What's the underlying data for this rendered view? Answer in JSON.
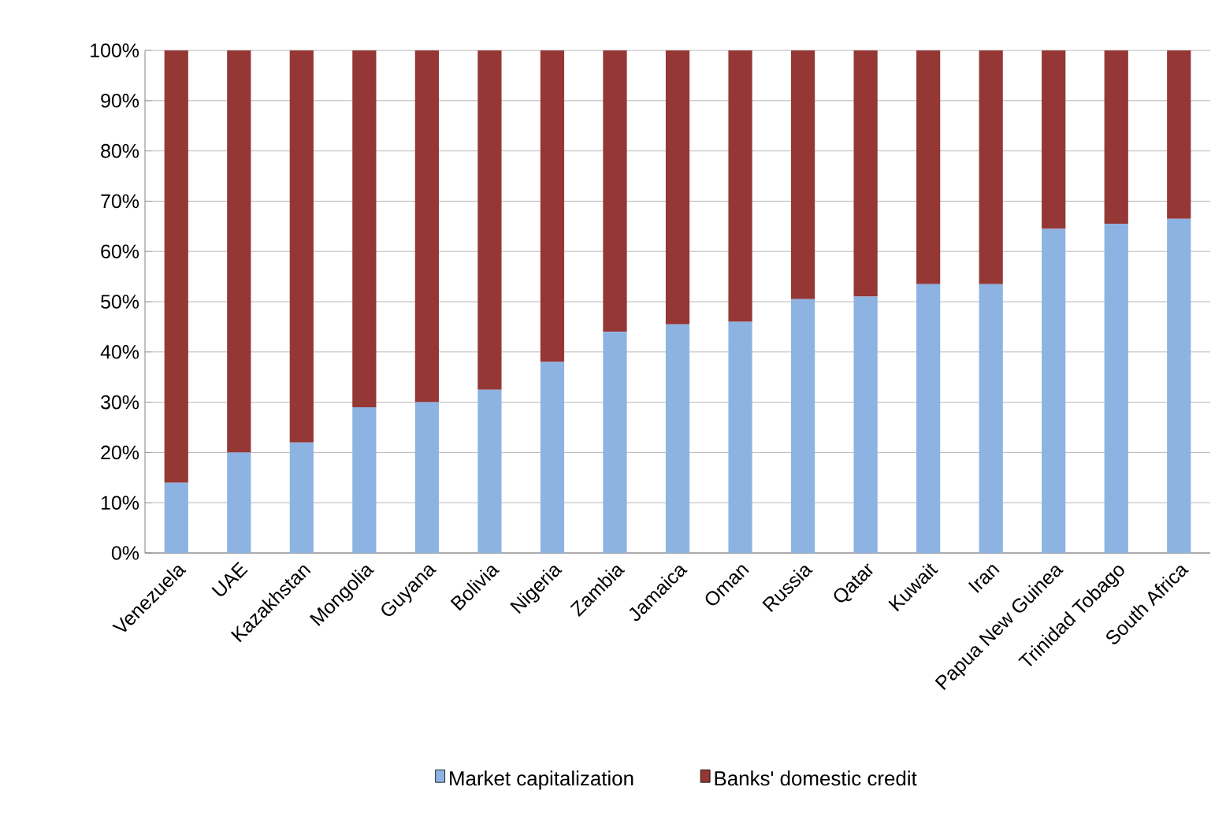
{
  "chart_data": {
    "type": "bar",
    "stacked": true,
    "categories": [
      "Venezuela",
      "UAE",
      "Kazakhstan",
      "Mongolia",
      "Guyana",
      "Bolivia",
      "Nigeria",
      "Zambia",
      "Jamaica",
      "Oman",
      "Russia",
      "Qatar",
      "Kuwait",
      "Iran",
      "Papua New Guinea",
      "Trinidad Tobago",
      "South Africa"
    ],
    "series": [
      {
        "name": "Market capitalization",
        "color": "#8db3e2",
        "values": [
          14,
          20,
          22,
          29,
          30,
          32.5,
          38,
          44,
          45.5,
          46,
          50.5,
          51,
          53.5,
          53.5,
          64.5,
          65.5,
          66.5
        ]
      },
      {
        "name": "Banks' domestic credit",
        "color": "#953735",
        "values": [
          86,
          80,
          78,
          71,
          70,
          67.5,
          62,
          56,
          54.5,
          54,
          49.5,
          49,
          46.5,
          46.5,
          35.5,
          34.5,
          33.5
        ]
      }
    ],
    "ylim": [
      0,
      100
    ],
    "yticks": [
      {
        "value": 0,
        "label": "0%"
      },
      {
        "value": 10,
        "label": "10%"
      },
      {
        "value": 20,
        "label": "20%"
      },
      {
        "value": 30,
        "label": "30%"
      },
      {
        "value": 40,
        "label": "40%"
      },
      {
        "value": 50,
        "label": "50%"
      },
      {
        "value": 60,
        "label": "60%"
      },
      {
        "value": 70,
        "label": "70%"
      },
      {
        "value": 80,
        "label": "80%"
      },
      {
        "value": 90,
        "label": "90%"
      },
      {
        "value": 100,
        "label": "100%"
      }
    ],
    "grid": "y",
    "legend": "bottom"
  }
}
